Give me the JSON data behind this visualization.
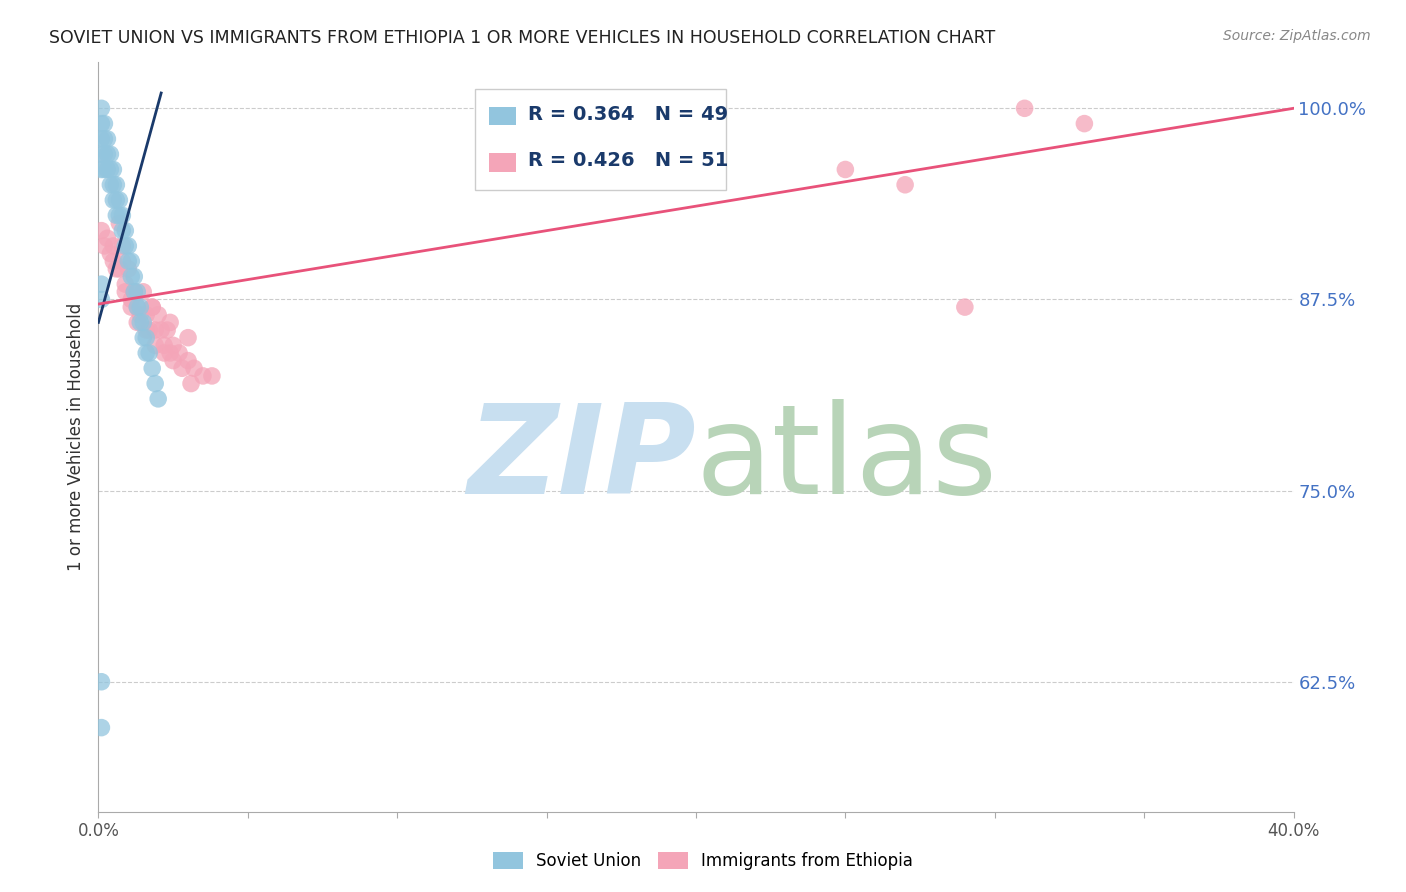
{
  "title": "SOVIET UNION VS IMMIGRANTS FROM ETHIOPIA 1 OR MORE VEHICLES IN HOUSEHOLD CORRELATION CHART",
  "source": "Source: ZipAtlas.com",
  "ylabel": "1 or more Vehicles in Household",
  "ytick_labels": [
    "100.0%",
    "87.5%",
    "75.0%",
    "62.5%"
  ],
  "ytick_values": [
    1.0,
    0.875,
    0.75,
    0.625
  ],
  "xlim": [
    0.0,
    0.4
  ],
  "ylim": [
    0.54,
    1.03
  ],
  "xmin_label": "0.0%",
  "xmax_label": "40.0%",
  "soviet_R": 0.364,
  "soviet_N": 49,
  "ethiopia_R": 0.426,
  "ethiopia_N": 51,
  "soviet_color": "#92c5de",
  "soviet_line_color": "#1a3a6b",
  "ethiopia_color": "#f4a5b8",
  "ethiopia_line_color": "#e8527a",
  "legend_label1": "Soviet Union",
  "legend_label2": "Immigrants from Ethiopia",
  "grid_color": "#cccccc",
  "background_color": "#ffffff",
  "ytick_color": "#4472c4",
  "watermark_zip_color": "#c8dff0",
  "watermark_atlas_color": "#b8d4b8",
  "soviet_x": [
    0.001,
    0.001,
    0.001,
    0.001,
    0.001,
    0.002,
    0.002,
    0.002,
    0.002,
    0.003,
    0.003,
    0.003,
    0.004,
    0.004,
    0.004,
    0.005,
    0.005,
    0.005,
    0.006,
    0.006,
    0.006,
    0.007,
    0.007,
    0.008,
    0.008,
    0.009,
    0.009,
    0.01,
    0.01,
    0.011,
    0.011,
    0.012,
    0.012,
    0.013,
    0.013,
    0.014,
    0.014,
    0.015,
    0.015,
    0.016,
    0.016,
    0.017,
    0.018,
    0.019,
    0.02,
    0.001,
    0.001,
    0.001,
    0.001
  ],
  "soviet_y": [
    1.0,
    0.99,
    0.98,
    0.97,
    0.96,
    0.99,
    0.98,
    0.97,
    0.96,
    0.98,
    0.97,
    0.96,
    0.97,
    0.96,
    0.95,
    0.96,
    0.95,
    0.94,
    0.95,
    0.94,
    0.93,
    0.94,
    0.93,
    0.93,
    0.92,
    0.92,
    0.91,
    0.91,
    0.9,
    0.9,
    0.89,
    0.89,
    0.88,
    0.88,
    0.87,
    0.87,
    0.86,
    0.86,
    0.85,
    0.85,
    0.84,
    0.84,
    0.83,
    0.82,
    0.81,
    0.885,
    0.875,
    0.625,
    0.595
  ],
  "ethiopia_x": [
    0.001,
    0.002,
    0.003,
    0.004,
    0.005,
    0.006,
    0.007,
    0.008,
    0.009,
    0.01,
    0.011,
    0.012,
    0.013,
    0.014,
    0.015,
    0.016,
    0.017,
    0.018,
    0.019,
    0.02,
    0.021,
    0.022,
    0.023,
    0.024,
    0.025,
    0.027,
    0.03,
    0.032,
    0.035,
    0.038,
    0.007,
    0.009,
    0.011,
    0.013,
    0.016,
    0.019,
    0.022,
    0.025,
    0.028,
    0.031,
    0.005,
    0.008,
    0.012,
    0.018,
    0.024,
    0.03,
    0.25,
    0.27,
    0.29,
    0.31,
    0.33
  ],
  "ethiopia_y": [
    0.92,
    0.91,
    0.915,
    0.905,
    0.9,
    0.895,
    0.925,
    0.91,
    0.885,
    0.895,
    0.875,
    0.88,
    0.87,
    0.865,
    0.88,
    0.865,
    0.855,
    0.87,
    0.855,
    0.865,
    0.855,
    0.845,
    0.855,
    0.84,
    0.845,
    0.84,
    0.835,
    0.83,
    0.825,
    0.825,
    0.895,
    0.88,
    0.87,
    0.86,
    0.855,
    0.845,
    0.84,
    0.835,
    0.83,
    0.82,
    0.91,
    0.9,
    0.88,
    0.87,
    0.86,
    0.85,
    0.96,
    0.95,
    0.87,
    1.0,
    0.99
  ],
  "ethiopia_line_x0": 0.0,
  "ethiopia_line_y0": 0.872,
  "ethiopia_line_x1": 0.4,
  "ethiopia_line_y1": 1.0,
  "soviet_line_x0": 0.0,
  "soviet_line_y0": 0.86,
  "soviet_line_x1": 0.021,
  "soviet_line_y1": 1.01
}
